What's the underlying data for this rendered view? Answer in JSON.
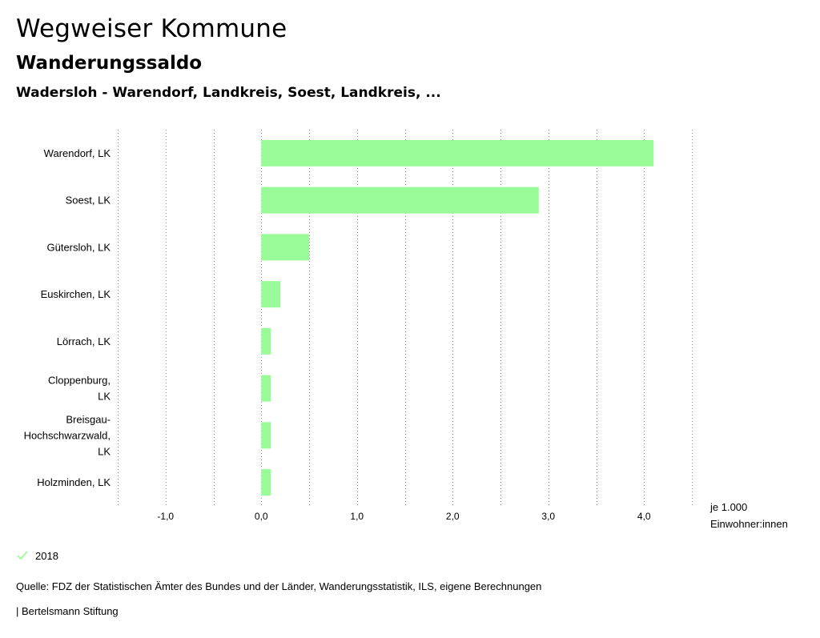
{
  "header": {
    "title": "Wegweiser Kommune",
    "subtitle": "Wanderungssaldo",
    "selection": "Wadersloh - Warendorf, Landkreis, Soest, Landkreis, ..."
  },
  "legend": {
    "items": [
      {
        "label": "2018",
        "color": "#98fb98",
        "icon": "check-icon"
      }
    ]
  },
  "footer": {
    "source": "Quelle: FDZ der Statistischen Ämter des Bundes und der Länder, Wanderungsstatistik, ILS, eigene Berechnungen",
    "publisher": "| Bertelsmann Stiftung"
  },
  "colors": {
    "bar": "#98fb98",
    "grid": "#999999",
    "text": "#000000"
  },
  "chart_data": {
    "type": "bar",
    "orientation": "horizontal",
    "categories": [
      [
        "Warendorf, LK"
      ],
      [
        "Soest, LK"
      ],
      [
        "Gütersloh, LK"
      ],
      [
        "Euskirchen, LK"
      ],
      [
        "Lörrach, LK"
      ],
      [
        "Cloppenburg,",
        "LK"
      ],
      [
        "Breisgau-",
        "Hochschwarzwald,",
        "LK"
      ],
      [
        "Holzminden, LK"
      ]
    ],
    "series": [
      {
        "name": "2018",
        "values": [
          4.1,
          2.9,
          0.5,
          0.2,
          0.1,
          0.1,
          0.1,
          0.1
        ]
      }
    ],
    "xlim": [
      -1.5,
      4.5
    ],
    "ticks": [
      -1,
      0,
      1,
      2,
      3,
      4
    ],
    "tick_labels": [
      "-1,0",
      "0,0",
      "1,0",
      "2,0",
      "3,0",
      "4,0"
    ],
    "grid_values": [
      -1.5,
      -1,
      -0.5,
      0,
      0.5,
      1,
      1.5,
      2,
      2.5,
      3,
      3.5,
      4,
      4.5
    ],
    "unit_label": [
      "je 1.000",
      "Einwohner:innen"
    ],
    "grid": true,
    "legend_position": "bottom-left"
  }
}
